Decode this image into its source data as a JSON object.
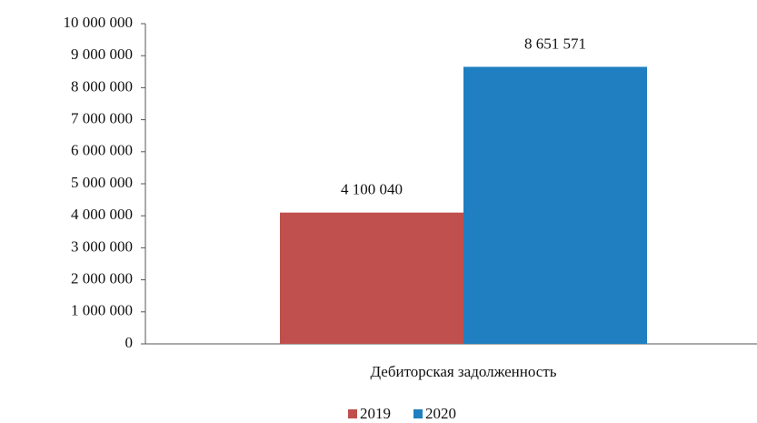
{
  "chart_data": {
    "type": "bar",
    "categories": [
      "Дебиторская задолженность"
    ],
    "series": [
      {
        "name": "2019",
        "color": "#c0504d",
        "values": [
          4100040
        ],
        "value_labels": [
          "4 100 040"
        ]
      },
      {
        "name": "2020",
        "color": "#1f7fc0",
        "values": [
          8651571
        ],
        "value_labels": [
          "8 651 571"
        ]
      }
    ],
    "ylim": [
      0,
      10000000
    ],
    "yticks": [
      0,
      {
        "value": 1000000,
        "label": "1 000 000"
      },
      {
        "value": 2000000,
        "label": "2 000 000"
      },
      {
        "value": 3000000,
        "label": "3 000 000"
      },
      {
        "value": 4000000,
        "label": "4 000 000"
      },
      {
        "value": 5000000,
        "label": "5 000 000"
      },
      {
        "value": 6000000,
        "label": "6 000 000"
      },
      {
        "value": 7000000,
        "label": "7 000 000"
      },
      {
        "value": 8000000,
        "label": "8 000 000"
      },
      {
        "value": 9000000,
        "label": "9 000 000"
      },
      {
        "value": 10000000,
        "label": "10 000 000"
      }
    ],
    "grid": false,
    "legend": "bottom"
  }
}
